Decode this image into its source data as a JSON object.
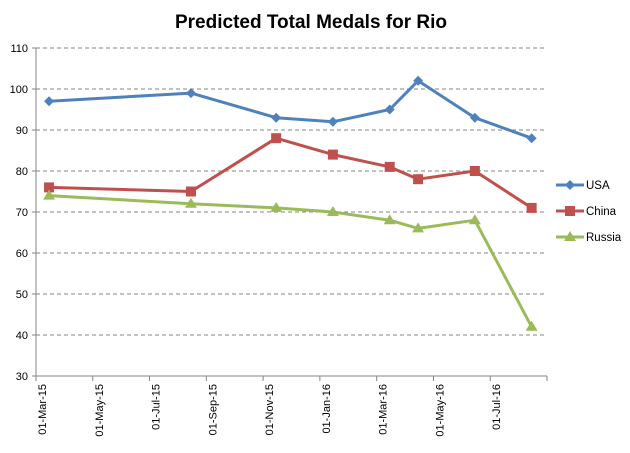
{
  "chart_data": {
    "type": "line",
    "title": "Predicted Total Medals for Rio",
    "xlabel": "",
    "ylabel": "",
    "ylim": [
      30,
      110
    ],
    "yticks": [
      "30",
      "40",
      "50",
      "60",
      "70",
      "80",
      "90",
      "100",
      "110"
    ],
    "xlim": [
      "2015-03-01",
      "2016-09-01"
    ],
    "xticks": [
      "01-Mar-15",
      "01-May-15",
      "01-Jul-15",
      "01-Sep-15",
      "01-Nov-15",
      "01-Jan-16",
      "01-Mar-16",
      "01-May-16",
      "01-Jul-16"
    ],
    "grid": "horizontal dashed",
    "legend_position": "right",
    "x": [
      "2015-03-15",
      "2015-08-15",
      "2015-11-15",
      "2016-01-15",
      "2016-03-15",
      "2016-04-15",
      "2016-06-15",
      "2016-08-15"
    ],
    "series": [
      {
        "name": "USA",
        "color": "#4F81BD",
        "marker": "diamond",
        "values": [
          97,
          99,
          93,
          92,
          95,
          102,
          93,
          88
        ]
      },
      {
        "name": "China",
        "color": "#C0504D",
        "marker": "square",
        "values": [
          76,
          75,
          88,
          84,
          81,
          78,
          80,
          71
        ]
      },
      {
        "name": "Russia",
        "color": "#9BBB59",
        "marker": "triangle",
        "values": [
          74,
          72,
          71,
          70,
          68,
          66,
          68,
          42
        ]
      }
    ]
  }
}
